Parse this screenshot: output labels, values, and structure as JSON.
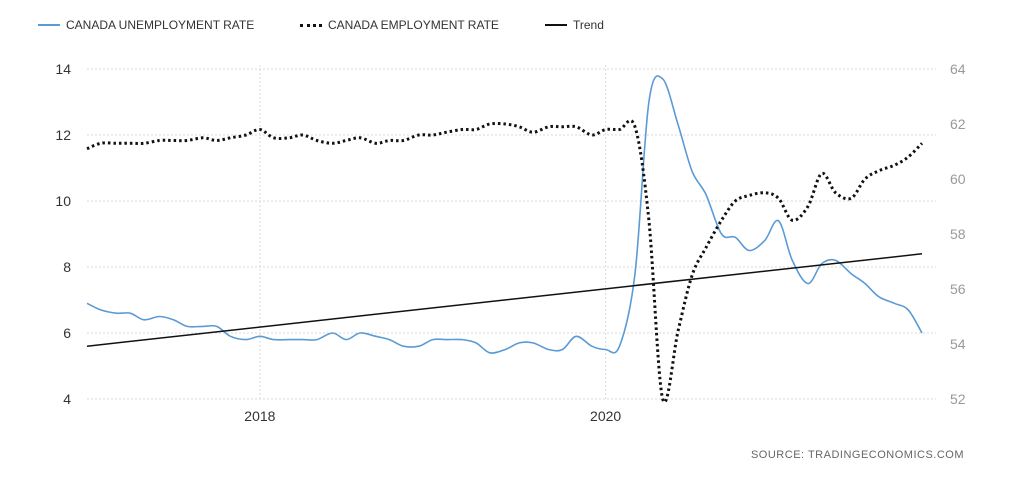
{
  "chart_data": {
    "type": "line",
    "legend": {
      "position": "top-left",
      "entries": [
        "CANADA UNEMPLOYMENT RATE",
        "CANADA EMPLOYMENT RATE",
        "Trend"
      ]
    },
    "left_axis": {
      "ylim": [
        4,
        14
      ],
      "ticks": [
        "4",
        "6",
        "8",
        "10",
        "12",
        "14"
      ]
    },
    "right_axis": {
      "ylim": [
        52,
        64
      ],
      "ticks": [
        "52",
        "54",
        "56",
        "58",
        "60",
        "62",
        "64"
      ]
    },
    "x_axis": {
      "xlim": [
        2017.0,
        2021.83
      ],
      "ticks": [
        2018,
        2020
      ],
      "tick_labels": [
        "2018",
        "2020"
      ]
    },
    "grid": true,
    "series": [
      {
        "name": "CANADA UNEMPLOYMENT RATE",
        "axis": "left",
        "color": "#5b9bd5",
        "style": "solid",
        "points": [
          [
            2017.0,
            6.9
          ],
          [
            2017.08,
            6.7
          ],
          [
            2017.17,
            6.6
          ],
          [
            2017.25,
            6.6
          ],
          [
            2017.33,
            6.4
          ],
          [
            2017.42,
            6.5
          ],
          [
            2017.5,
            6.4
          ],
          [
            2017.58,
            6.2
          ],
          [
            2017.67,
            6.2
          ],
          [
            2017.75,
            6.2
          ],
          [
            2017.83,
            5.9
          ],
          [
            2017.92,
            5.8
          ],
          [
            2018.0,
            5.9
          ],
          [
            2018.08,
            5.8
          ],
          [
            2018.17,
            5.8
          ],
          [
            2018.25,
            5.8
          ],
          [
            2018.33,
            5.8
          ],
          [
            2018.42,
            6.0
          ],
          [
            2018.5,
            5.8
          ],
          [
            2018.58,
            6.0
          ],
          [
            2018.67,
            5.9
          ],
          [
            2018.75,
            5.8
          ],
          [
            2018.83,
            5.6
          ],
          [
            2018.92,
            5.6
          ],
          [
            2019.0,
            5.8
          ],
          [
            2019.08,
            5.8
          ],
          [
            2019.17,
            5.8
          ],
          [
            2019.25,
            5.7
          ],
          [
            2019.33,
            5.4
          ],
          [
            2019.42,
            5.5
          ],
          [
            2019.5,
            5.7
          ],
          [
            2019.58,
            5.7
          ],
          [
            2019.67,
            5.5
          ],
          [
            2019.75,
            5.5
          ],
          [
            2019.83,
            5.9
          ],
          [
            2019.92,
            5.6
          ],
          [
            2020.0,
            5.5
          ],
          [
            2020.08,
            5.6
          ],
          [
            2020.17,
            7.8
          ],
          [
            2020.25,
            13.0
          ],
          [
            2020.33,
            13.7
          ],
          [
            2020.42,
            12.3
          ],
          [
            2020.5,
            10.9
          ],
          [
            2020.58,
            10.2
          ],
          [
            2020.67,
            9.0
          ],
          [
            2020.75,
            8.9
          ],
          [
            2020.83,
            8.5
          ],
          [
            2020.92,
            8.8
          ],
          [
            2021.0,
            9.4
          ],
          [
            2021.08,
            8.2
          ],
          [
            2021.17,
            7.5
          ],
          [
            2021.25,
            8.1
          ],
          [
            2021.33,
            8.2
          ],
          [
            2021.42,
            7.8
          ],
          [
            2021.5,
            7.5
          ],
          [
            2021.58,
            7.1
          ],
          [
            2021.67,
            6.9
          ],
          [
            2021.75,
            6.7
          ],
          [
            2021.83,
            6.0
          ]
        ]
      },
      {
        "name": "CANADA EMPLOYMENT RATE",
        "axis": "right",
        "color": "#111111",
        "style": "dotted",
        "points": [
          [
            2017.0,
            61.1
          ],
          [
            2017.08,
            61.3
          ],
          [
            2017.17,
            61.3
          ],
          [
            2017.25,
            61.3
          ],
          [
            2017.33,
            61.3
          ],
          [
            2017.42,
            61.4
          ],
          [
            2017.5,
            61.4
          ],
          [
            2017.58,
            61.4
          ],
          [
            2017.67,
            61.5
          ],
          [
            2017.75,
            61.4
          ],
          [
            2017.83,
            61.5
          ],
          [
            2017.92,
            61.6
          ],
          [
            2018.0,
            61.8
          ],
          [
            2018.08,
            61.5
          ],
          [
            2018.17,
            61.5
          ],
          [
            2018.25,
            61.6
          ],
          [
            2018.33,
            61.4
          ],
          [
            2018.42,
            61.3
          ],
          [
            2018.5,
            61.4
          ],
          [
            2018.58,
            61.5
          ],
          [
            2018.67,
            61.3
          ],
          [
            2018.75,
            61.4
          ],
          [
            2018.83,
            61.4
          ],
          [
            2018.92,
            61.6
          ],
          [
            2019.0,
            61.6
          ],
          [
            2019.08,
            61.7
          ],
          [
            2019.17,
            61.8
          ],
          [
            2019.25,
            61.8
          ],
          [
            2019.33,
            62.0
          ],
          [
            2019.42,
            62.0
          ],
          [
            2019.5,
            61.9
          ],
          [
            2019.58,
            61.7
          ],
          [
            2019.67,
            61.9
          ],
          [
            2019.75,
            61.9
          ],
          [
            2019.83,
            61.9
          ],
          [
            2019.92,
            61.6
          ],
          [
            2020.0,
            61.8
          ],
          [
            2020.08,
            61.8
          ],
          [
            2020.17,
            61.9
          ],
          [
            2020.25,
            58.5
          ],
          [
            2020.33,
            52.0
          ],
          [
            2020.42,
            54.5
          ],
          [
            2020.5,
            56.5
          ],
          [
            2020.58,
            57.5
          ],
          [
            2020.67,
            58.5
          ],
          [
            2020.75,
            59.2
          ],
          [
            2020.83,
            59.4
          ],
          [
            2020.92,
            59.5
          ],
          [
            2021.0,
            59.3
          ],
          [
            2021.08,
            58.5
          ],
          [
            2021.17,
            59.0
          ],
          [
            2021.25,
            60.2
          ],
          [
            2021.33,
            59.5
          ],
          [
            2021.42,
            59.3
          ],
          [
            2021.5,
            60.0
          ],
          [
            2021.58,
            60.3
          ],
          [
            2021.67,
            60.5
          ],
          [
            2021.75,
            60.8
          ],
          [
            2021.83,
            61.3
          ]
        ]
      },
      {
        "name": "Trend",
        "axis": "left",
        "color": "#111111",
        "style": "solid",
        "points": [
          [
            2017.0,
            5.6
          ],
          [
            2021.83,
            8.4
          ]
        ]
      }
    ]
  },
  "source_text": "SOURCE:  TRADINGECONOMICS.COM"
}
